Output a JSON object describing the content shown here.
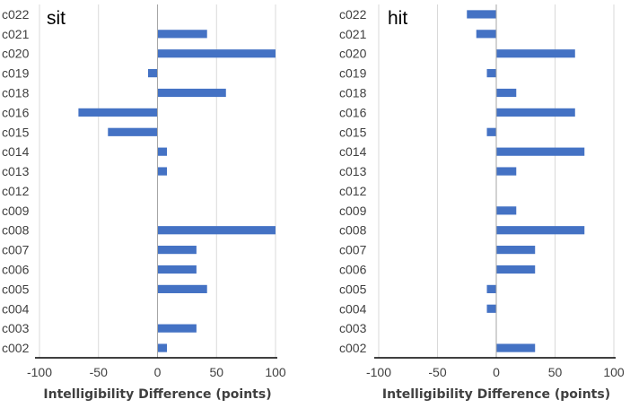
{
  "chart_data": [
    {
      "type": "bar",
      "orientation": "horizontal",
      "title": "sit",
      "xlabel": "Intelligibility Difference (points)",
      "ylabel": "",
      "xlim": [
        -100,
        100
      ],
      "xticks": [
        -100,
        -50,
        0,
        50,
        100
      ],
      "grid": true,
      "categories": [
        "c022",
        "c021",
        "c020",
        "c019",
        "c018",
        "c016",
        "c015",
        "c014",
        "c013",
        "c012",
        "c009",
        "c008",
        "c007",
        "c006",
        "c005",
        "c004",
        "c003",
        "c002"
      ],
      "values": [
        0,
        42,
        100,
        -8,
        58,
        -67,
        -42,
        8,
        8,
        0,
        0,
        100,
        33,
        33,
        42,
        0,
        33,
        8
      ],
      "color": "#4472c4"
    },
    {
      "type": "bar",
      "orientation": "horizontal",
      "title": "hit",
      "xlabel": "Intelligibility Difference (points)",
      "ylabel": "",
      "xlim": [
        -100,
        100
      ],
      "xticks": [
        -100,
        -50,
        0,
        50,
        100
      ],
      "grid": true,
      "categories": [
        "c022",
        "c021",
        "c020",
        "c019",
        "c018",
        "c016",
        "c015",
        "c014",
        "c013",
        "c012",
        "c009",
        "c008",
        "c007",
        "c006",
        "c005",
        "c004",
        "c003",
        "c002"
      ],
      "values": [
        -25,
        -17,
        67,
        -8,
        17,
        67,
        -8,
        75,
        17,
        0,
        17,
        75,
        33,
        33,
        -8,
        -8,
        0,
        33
      ],
      "color": "#4472c4"
    }
  ]
}
